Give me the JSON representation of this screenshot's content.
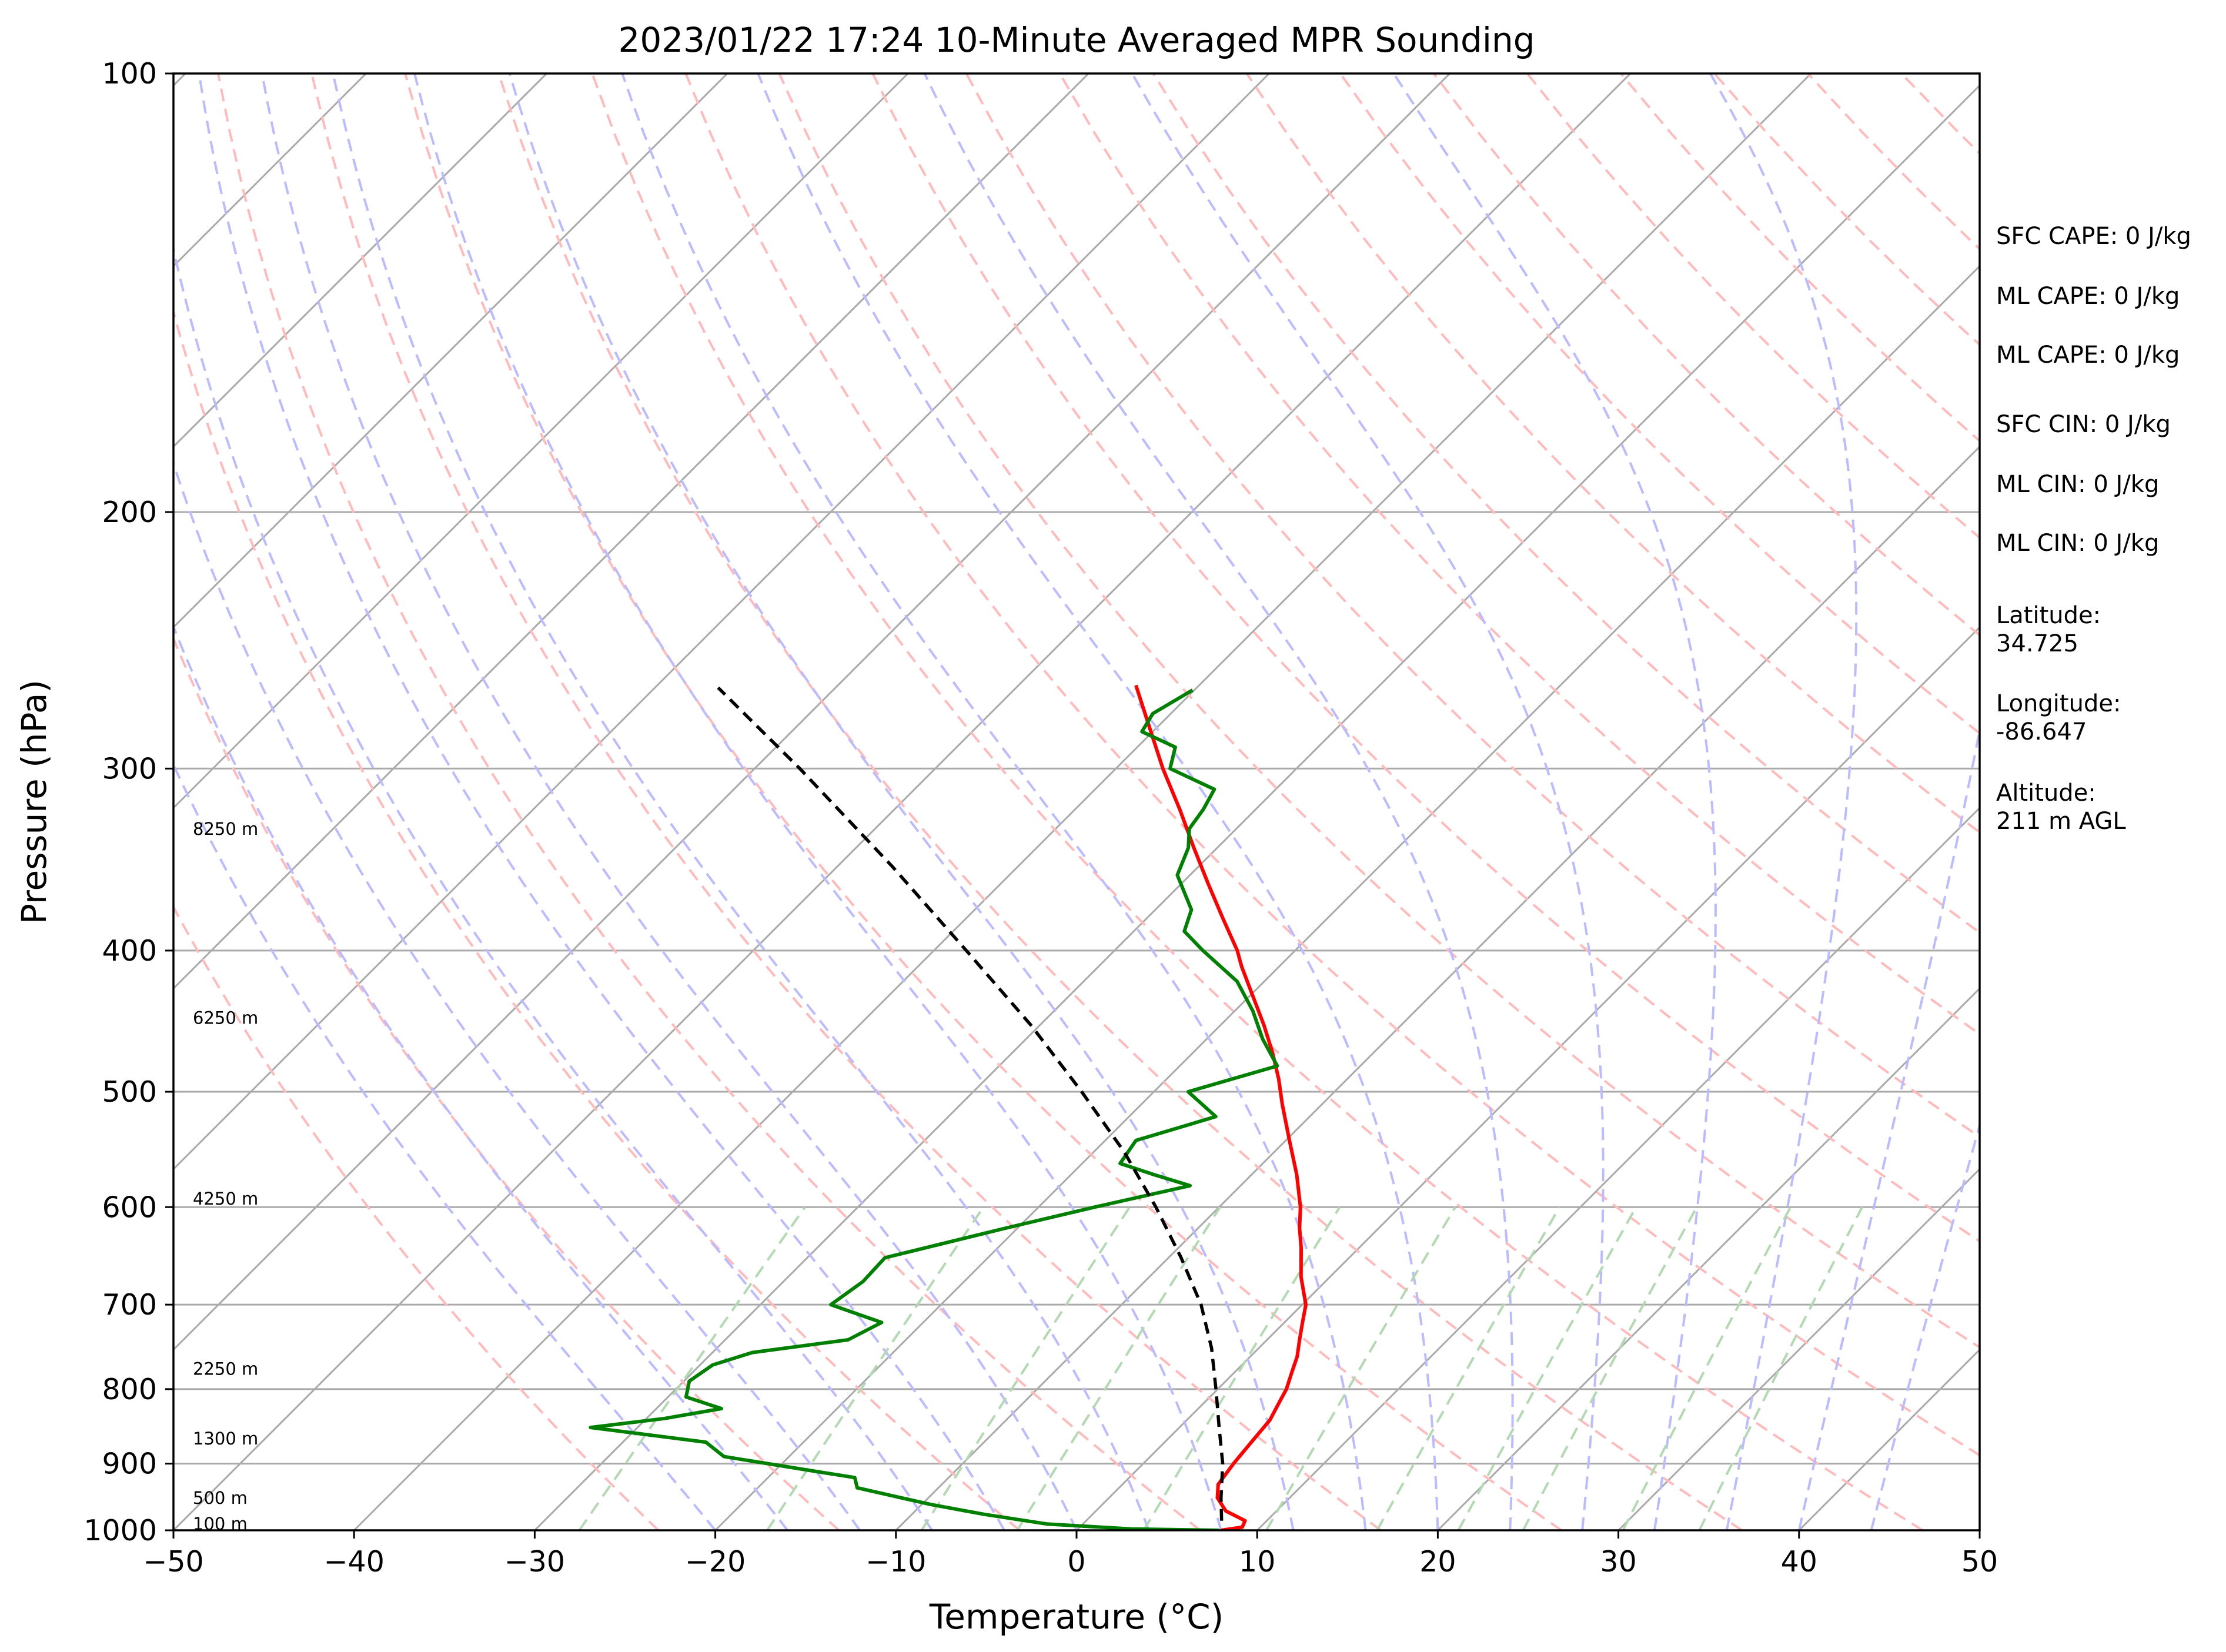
{
  "chart_data": {
    "type": "line",
    "title": "2023/01/22 17:24 10-Minute Averaged MPR Sounding",
    "xlabel": "Temperature (°C)",
    "ylabel": "Pressure (hPa)",
    "xlim": [
      -50,
      50
    ],
    "ylim": [
      1000,
      100
    ],
    "y_scale": "log",
    "skew": true,
    "grid": true,
    "x_ticks": [
      "−50",
      "−40",
      "−30",
      "−20",
      "−10",
      "0",
      "10",
      "20",
      "30",
      "40",
      "50"
    ],
    "y_ticks": [
      "1000",
      "900",
      "800",
      "700",
      "600",
      "500",
      "400",
      "300",
      "200",
      "100"
    ],
    "series": [
      {
        "role": "temperature",
        "color": "#ff0000",
        "points": [
          [
            1000,
            8.0
          ],
          [
            995,
            9.0
          ],
          [
            985,
            8.8
          ],
          [
            970,
            7.2
          ],
          [
            950,
            6.0
          ],
          [
            930,
            5.3
          ],
          [
            900,
            5.0
          ],
          [
            870,
            4.8
          ],
          [
            840,
            4.6
          ],
          [
            820,
            4.2
          ],
          [
            800,
            3.8
          ],
          [
            780,
            3.2
          ],
          [
            760,
            2.6
          ],
          [
            740,
            1.8
          ],
          [
            720,
            1.0
          ],
          [
            700,
            0.2
          ],
          [
            670,
            -1.6
          ],
          [
            640,
            -3.2
          ],
          [
            620,
            -4.4
          ],
          [
            600,
            -5.5
          ],
          [
            570,
            -7.5
          ],
          [
            540,
            -9.8
          ],
          [
            510,
            -12.2
          ],
          [
            490,
            -13.8
          ],
          [
            470,
            -15.6
          ],
          [
            450,
            -17.6
          ],
          [
            430,
            -19.8
          ],
          [
            410,
            -22.1
          ],
          [
            400,
            -23.2
          ],
          [
            380,
            -25.8
          ],
          [
            360,
            -28.5
          ],
          [
            340,
            -31.3
          ],
          [
            320,
            -34.2
          ],
          [
            300,
            -37.4
          ],
          [
            280,
            -40.6
          ],
          [
            263,
            -43.5
          ]
        ]
      },
      {
        "role": "dewpoint",
        "color": "#008000",
        "points": [
          [
            1000,
            7.9
          ],
          [
            998,
            3.0
          ],
          [
            990,
            -2.0
          ],
          [
            975,
            -6.0
          ],
          [
            960,
            -9.5
          ],
          [
            945,
            -12.5
          ],
          [
            935,
            -14.5
          ],
          [
            920,
            -15.2
          ],
          [
            910,
            -18.0
          ],
          [
            890,
            -23.6
          ],
          [
            870,
            -25.4
          ],
          [
            850,
            -32.6
          ],
          [
            838,
            -29.0
          ],
          [
            825,
            -26.4
          ],
          [
            810,
            -29.0
          ],
          [
            790,
            -29.7
          ],
          [
            770,
            -29.3
          ],
          [
            755,
            -27.8
          ],
          [
            740,
            -23.2
          ],
          [
            720,
            -22.3
          ],
          [
            700,
            -26.1
          ],
          [
            675,
            -25.6
          ],
          [
            650,
            -25.7
          ],
          [
            620,
            -20.6
          ],
          [
            600,
            -16.9
          ],
          [
            580,
            -12.8
          ],
          [
            570,
            -15.4
          ],
          [
            560,
            -17.9
          ],
          [
            540,
            -18.3
          ],
          [
            520,
            -15.2
          ],
          [
            500,
            -18.1
          ],
          [
            480,
            -14.6
          ],
          [
            460,
            -16.9
          ],
          [
            440,
            -19.0
          ],
          [
            420,
            -21.5
          ],
          [
            400,
            -25.1
          ],
          [
            388,
            -27.2
          ],
          [
            375,
            -28.0
          ],
          [
            355,
            -30.7
          ],
          [
            340,
            -31.6
          ],
          [
            330,
            -32.6
          ],
          [
            320,
            -32.9
          ],
          [
            310,
            -33.4
          ],
          [
            300,
            -37.0
          ],
          [
            290,
            -37.9
          ],
          [
            283,
            -40.6
          ],
          [
            275,
            -41.0
          ],
          [
            265,
            -40.1
          ]
        ]
      },
      {
        "role": "parcel",
        "color": "#000000",
        "style": "dashed",
        "points": [
          [
            985,
            7.5
          ],
          [
            950,
            6.2
          ],
          [
            900,
            4.4
          ],
          [
            850,
            2.2
          ],
          [
            800,
            -0.1
          ],
          [
            750,
            -2.6
          ],
          [
            700,
            -5.6
          ],
          [
            650,
            -9.3
          ],
          [
            600,
            -13.5
          ],
          [
            550,
            -18.3
          ],
          [
            500,
            -24.0
          ],
          [
            450,
            -30.5
          ],
          [
            400,
            -38.2
          ],
          [
            350,
            -47.0
          ],
          [
            300,
            -57.5
          ],
          [
            264,
            -66.5
          ]
        ]
      }
    ],
    "altitude_labels": [
      {
        "text": "100 m",
        "p": 990
      },
      {
        "text": "500 m",
        "p": 950
      },
      {
        "text": "1300 m",
        "p": 865
      },
      {
        "text": "2250 m",
        "p": 775
      },
      {
        "text": "4250 m",
        "p": 592
      },
      {
        "text": "6250 m",
        "p": 445
      },
      {
        "text": "8250 m",
        "p": 330
      }
    ],
    "reference_lines": {
      "isotherm_color": "#aaaaaa",
      "dry_adiabat_color": "#ffbbbb",
      "moist_adiabat_color": "#bbbbff",
      "mixing_ratio_color": "#b3d9b3"
    }
  },
  "info_panel": {
    "sfc_cape": "SFC CAPE: 0 J/kg",
    "ml_cape_1": "ML CAPE: 0 J/kg",
    "ml_cape_2": "ML CAPE: 0 J/kg",
    "sfc_cin": "SFC CIN: 0 J/kg",
    "ml_cin_1": "ML CIN: 0 J/kg",
    "ml_cin_2": "ML CIN: 0 J/kg",
    "latitude_label": "Latitude:",
    "latitude_value": "34.725",
    "longitude_label": "Longitude:",
    "longitude_value": "-86.647",
    "altitude_label": "Altitude:",
    "altitude_value": "211 m AGL"
  }
}
